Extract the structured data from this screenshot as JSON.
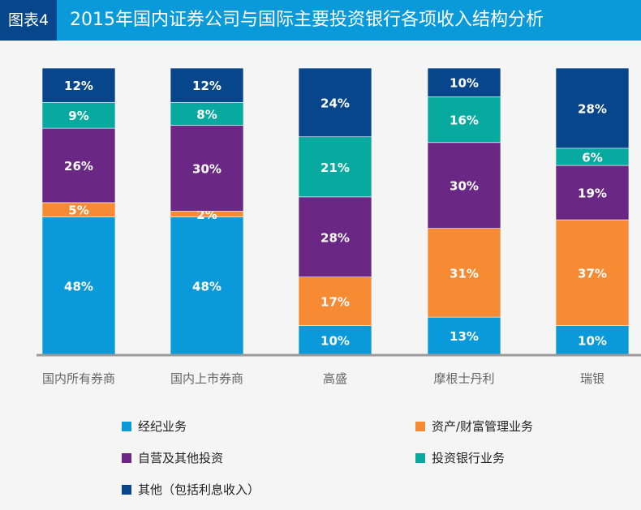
{
  "header": {
    "tag": "图表4",
    "title": "2015年国内证券公司与国际主要投资银行各项收入结构分析"
  },
  "chart_data": {
    "type": "bar",
    "stacked": true,
    "title": "2015年国内证券公司与国际主要投资银行各项收入结构分析",
    "categories": [
      "国内所有券商",
      "国内上市券商",
      "高盛",
      "摩根士丹利",
      "瑞银"
    ],
    "unit": "%",
    "ylim": [
      0,
      100
    ],
    "grid": false,
    "legend_position": "bottom",
    "series": [
      {
        "name": "经纪业务",
        "color": "#0b9ad9",
        "values": [
          48,
          48,
          10,
          13,
          10
        ]
      },
      {
        "name": "资产/财富管理业务",
        "color": "#f68b33",
        "values": [
          5,
          2,
          17,
          31,
          37
        ]
      },
      {
        "name": "自营及其他投资",
        "color": "#6a2784",
        "values": [
          26,
          30,
          28,
          30,
          19
        ]
      },
      {
        "name": "投资银行业务",
        "color": "#08aaa0",
        "values": [
          9,
          8,
          21,
          16,
          6
        ]
      },
      {
        "name": "其他（包括利息收入）",
        "color": "#08468c",
        "values": [
          12,
          12,
          24,
          10,
          28
        ]
      }
    ]
  }
}
